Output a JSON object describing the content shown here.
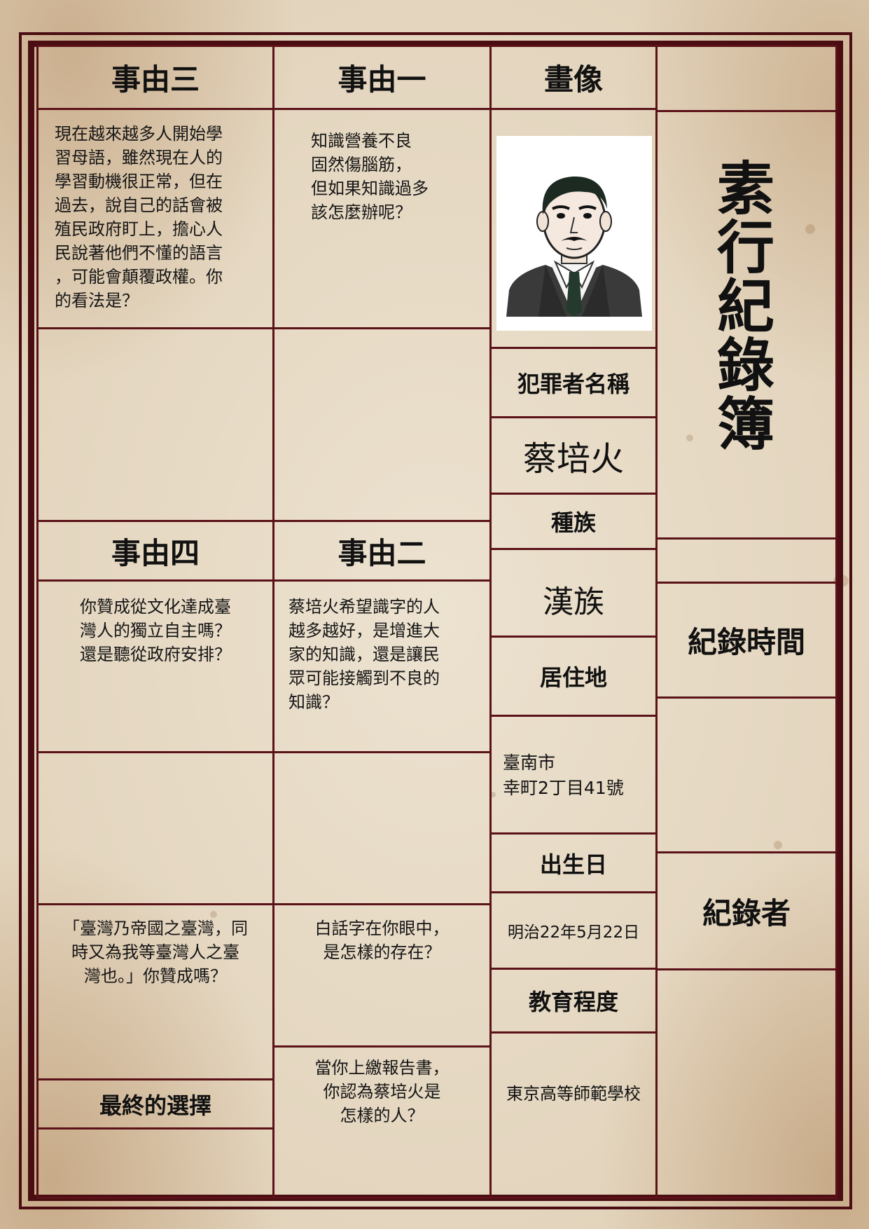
{
  "title": "素行紀錄簿",
  "portrait_label": "畫像",
  "reasons": {
    "one": {
      "label": "事由一",
      "question": "知識營養不良\n固然傷腦筋，\n但如果知識過多\n該怎麼辦呢？"
    },
    "two": {
      "label": "事由二",
      "question": "蔡培火希望識字的人\n越多越好，是增進大\n家的知識，還是讓民\n眾可能接觸到不良的\n知識？"
    },
    "three": {
      "label": "事由三",
      "question": "現在越來越多人開始學\n習母語，雖然現在人的\n學習動機很正常，但在\n過去，說自己的話會被\n殖民政府盯上，擔心人\n民說著他們不懂的語言\n，可能會顛覆政權。你\n的看法是？"
    },
    "four": {
      "label": "事由四",
      "question": "你贊成從文化達成臺\n灣人的獨立自主嗎？\n還是聽從政府安排？"
    }
  },
  "extra_questions": {
    "taiwan": "「臺灣乃帝國之臺灣，同\n時又為我等臺灣人之臺\n灣也。」你贊成嗎？",
    "baihua": "白話字在你眼中，\n是怎樣的存在？",
    "report": "當你上繳報告書，\n你認為蔡培火是\n怎樣的人？"
  },
  "final_choice": "最終的選擇",
  "profile": {
    "name_label": "犯罪者名稱",
    "name": "蔡培火",
    "ethnicity_label": "種族",
    "ethnicity": "漢族",
    "residence_label": "居住地",
    "residence": "臺南市\n幸町2丁目41號",
    "birth_label": "出生日",
    "birth": "明治22年5月22日",
    "education_label": "教育程度",
    "education": "東京高等師範學校"
  },
  "record_time_label": "紀錄時間",
  "recorder_label": "紀錄者",
  "colors": {
    "border": "#5a1218",
    "paper": "#ece2d0"
  },
  "icons": {
    "portrait": "man-portrait-icon"
  }
}
